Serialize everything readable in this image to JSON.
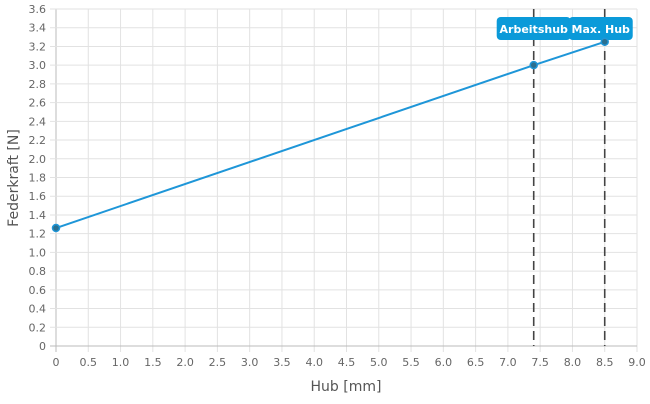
{
  "chart_data": {
    "type": "line",
    "xlabel": "Hub [mm]",
    "ylabel": "Federkraft [N]",
    "xlim": [
      0,
      9
    ],
    "ylim": [
      0,
      3.6
    ],
    "xticks": [
      "0",
      "0.5",
      "1.0",
      "1.5",
      "2.0",
      "2.5",
      "3.0",
      "3.5",
      "4.0",
      "4.5",
      "5.0",
      "5.5",
      "6.0",
      "6.5",
      "7.0",
      "7.5",
      "8.0",
      "8.5",
      "9.0"
    ],
    "yticks": [
      "0",
      "0.2",
      "0.4",
      "0.6",
      "0.8",
      "1.0",
      "1.2",
      "1.4",
      "1.6",
      "1.8",
      "2.0",
      "2.2",
      "2.4",
      "2.6",
      "2.8",
      "3.0",
      "3.2",
      "3.4",
      "3.6"
    ],
    "grid": true,
    "series": [
      {
        "x": [
          0,
          7.4,
          8.5
        ],
        "y": [
          1.26,
          3.0,
          3.25
        ],
        "color": "#1e96d8"
      }
    ],
    "annotations": [
      {
        "label": "Arbeitshub",
        "x": 7.4
      },
      {
        "label": "Max. Hub",
        "x": 8.5
      }
    ],
    "colors": {
      "line": "#1e96d8",
      "marker": "#2b6f8f",
      "label_bg": "#0b9ad9",
      "grid": "#e2e2e2",
      "tick_text": "#666666",
      "dashed": "#444444"
    }
  }
}
